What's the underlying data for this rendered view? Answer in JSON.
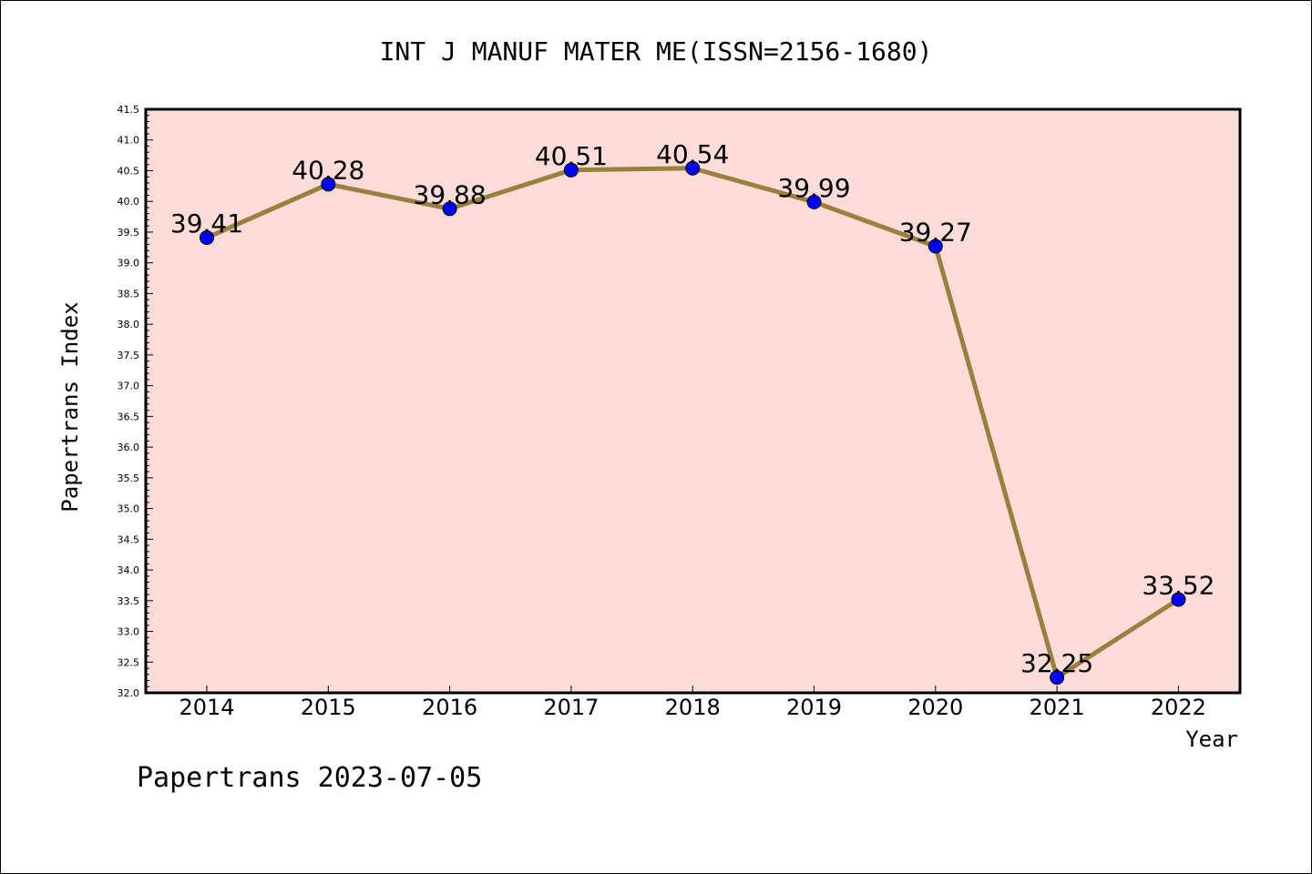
{
  "chart_data": {
    "type": "line",
    "title": "INT J MANUF MATER ME(ISSN=2156-1680)",
    "xlabel": "Year",
    "ylabel": "Papertrans Index",
    "footer": "Papertrans 2023-07-05",
    "categories": [
      "2014",
      "2015",
      "2016",
      "2017",
      "2018",
      "2019",
      "2020",
      "2021",
      "2022"
    ],
    "values": [
      39.41,
      40.28,
      39.88,
      40.51,
      40.54,
      39.99,
      39.27,
      32.25,
      33.52
    ],
    "data_labels": [
      "39.41",
      "40.28",
      "39.88",
      "40.51",
      "40.54",
      "39.99",
      "39.27",
      "32.25",
      "33.52"
    ],
    "ylim": [
      32.0,
      41.5
    ],
    "y_major_ticks": [
      "32.0",
      "32.5",
      "33.0",
      "33.5",
      "34.0",
      "34.5",
      "35.0",
      "35.5",
      "36.0",
      "36.5",
      "37.0",
      "37.5",
      "38.0",
      "38.5",
      "39.0",
      "39.5",
      "40.0",
      "40.5",
      "41.0",
      "41.5"
    ],
    "grid": false,
    "legend": "none",
    "colors": {
      "plot_background": "#fddcd9",
      "line": "#9b7f3c",
      "marker": "#0000ff",
      "axis": "#000000"
    }
  }
}
